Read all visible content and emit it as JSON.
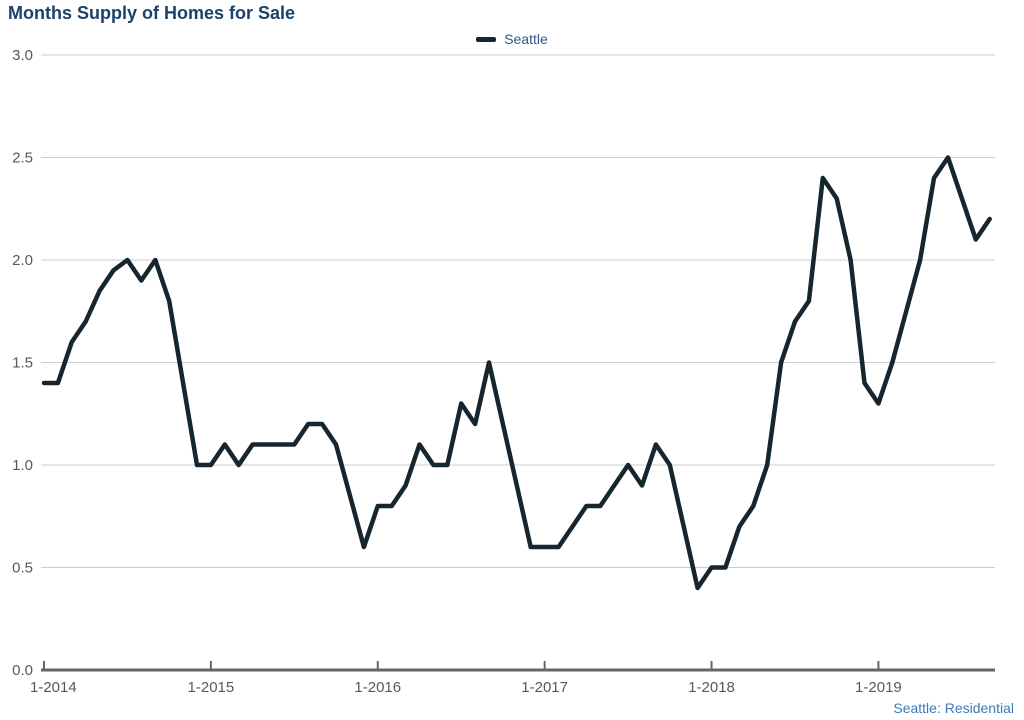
{
  "title": "Months Supply of Homes for Sale",
  "legend": {
    "label": "Seattle"
  },
  "footer": "Seattle: Residential",
  "colors": {
    "line": "#16262e",
    "title_text": "#1c416b",
    "legend_text": "#2d5a87",
    "footer_text": "#3d79b8",
    "tick_label": "#595959",
    "gridline": "#cccccc",
    "axis_line": "#666666"
  },
  "chart_data": {
    "type": "line",
    "title": "Months Supply of Homes for Sale",
    "xlabel": "",
    "ylabel": "",
    "legend_position": "top-center",
    "grid": "horizontal",
    "ylim": [
      0.0,
      3.0
    ],
    "y_ticks": [
      {
        "value": 0.0,
        "label": "0.0"
      },
      {
        "value": 0.5,
        "label": "0.5"
      },
      {
        "value": 1.0,
        "label": "1.0"
      },
      {
        "value": 1.5,
        "label": "1.5"
      },
      {
        "value": 2.0,
        "label": "2.0"
      },
      {
        "value": 2.5,
        "label": "2.5"
      },
      {
        "value": 3.0,
        "label": "3.0"
      }
    ],
    "x_ticks": [
      {
        "month_index": 0,
        "label": "1-2014"
      },
      {
        "month_index": 12,
        "label": "1-2015"
      },
      {
        "month_index": 24,
        "label": "1-2016"
      },
      {
        "month_index": 36,
        "label": "1-2017"
      },
      {
        "month_index": 48,
        "label": "1-2018"
      },
      {
        "month_index": 60,
        "label": "1-2019"
      }
    ],
    "x_unit": "month",
    "x_range_note": "monthly values from 1-2014 through 9-2019",
    "series": [
      {
        "name": "Seattle",
        "values": [
          1.4,
          1.4,
          1.6,
          1.7,
          1.85,
          1.95,
          2.0,
          1.9,
          2.0,
          1.8,
          1.4,
          1.0,
          1.0,
          1.1,
          1.0,
          1.1,
          1.1,
          1.1,
          1.1,
          1.2,
          1.2,
          1.1,
          0.85,
          0.6,
          0.8,
          0.8,
          0.9,
          1.1,
          1.0,
          1.0,
          1.3,
          1.2,
          1.5,
          1.2,
          0.9,
          0.6,
          0.6,
          0.6,
          0.7,
          0.8,
          0.8,
          0.9,
          1.0,
          0.9,
          1.1,
          1.0,
          0.7,
          0.4,
          0.5,
          0.5,
          0.7,
          0.8,
          1.0,
          1.5,
          1.7,
          1.8,
          2.4,
          2.3,
          2.0,
          1.4,
          1.3,
          1.5,
          1.75,
          2.0,
          2.4,
          2.5,
          2.3,
          2.1,
          2.2
        ]
      }
    ]
  }
}
